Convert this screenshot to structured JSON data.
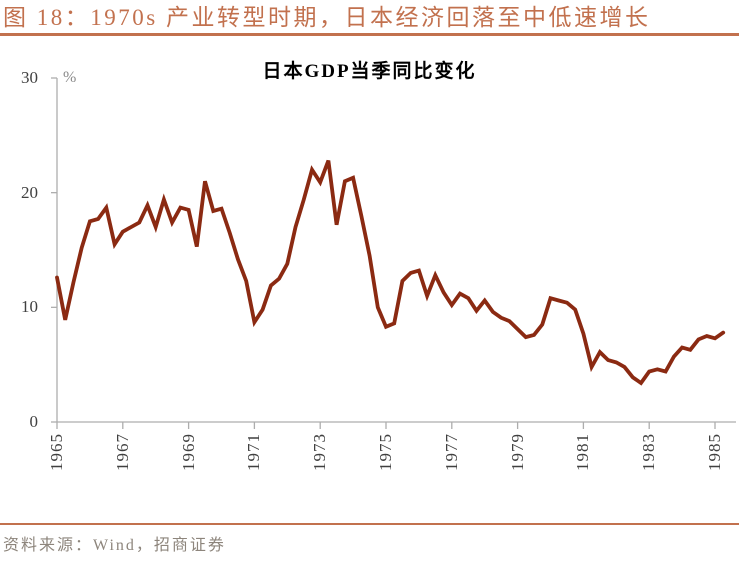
{
  "header": {
    "title": "图 18：1970s 产业转型时期，日本经济回落至中低速增长"
  },
  "chart": {
    "title": "日本GDP当季同比变化",
    "unit_label": "%"
  },
  "chart_data": {
    "type": "line",
    "title": "日本GDP当季同比变化",
    "xlabel": "",
    "ylabel": "%",
    "ylim": [
      0,
      30
    ],
    "y_ticks": [
      0,
      10,
      20,
      30
    ],
    "x_tick_labels": [
      "1965",
      "1967",
      "1969",
      "1971",
      "1973",
      "1975",
      "1977",
      "1979",
      "1981",
      "1983",
      "1985"
    ],
    "x_start": "1965Q1",
    "x_end": "1985Q2",
    "frequency": "quarterly",
    "grid": false,
    "legend": "none",
    "series": [
      {
        "name": "日本GDP当季同比变化",
        "color": "#8B2A12",
        "values": [
          12.6,
          8.9,
          12.2,
          15.2,
          17.5,
          17.7,
          18.7,
          15.5,
          16.6,
          17.0,
          17.4,
          18.9,
          17.0,
          19.4,
          17.4,
          18.7,
          18.5,
          15.3,
          21.0,
          18.4,
          18.6,
          16.5,
          14.2,
          12.3,
          8.7,
          9.8,
          11.9,
          12.5,
          13.8,
          17.0,
          19.4,
          22.0,
          20.9,
          22.8,
          17.2,
          21.0,
          21.3,
          18.0,
          14.5,
          10.0,
          8.3,
          8.6,
          12.3,
          13.0,
          13.2,
          11.0,
          12.8,
          11.3,
          10.2,
          11.2,
          10.8,
          9.7,
          10.6,
          9.6,
          9.1,
          8.8,
          8.1,
          7.4,
          7.6,
          8.5,
          10.8,
          10.6,
          10.4,
          9.8,
          7.7,
          4.8,
          6.1,
          5.4,
          5.2,
          4.8,
          3.9,
          3.4,
          4.4,
          4.6,
          4.4,
          5.7,
          6.5,
          6.3,
          7.2,
          7.5,
          7.3,
          7.8
        ]
      }
    ]
  },
  "colors": {
    "accent": "#C2714E",
    "line": "#8B2A12",
    "axis": "#ADADAD",
    "tick_text": "#404040",
    "source_text": "#8D857C"
  },
  "footer": {
    "source": "资料来源：Wind，招商证券"
  }
}
